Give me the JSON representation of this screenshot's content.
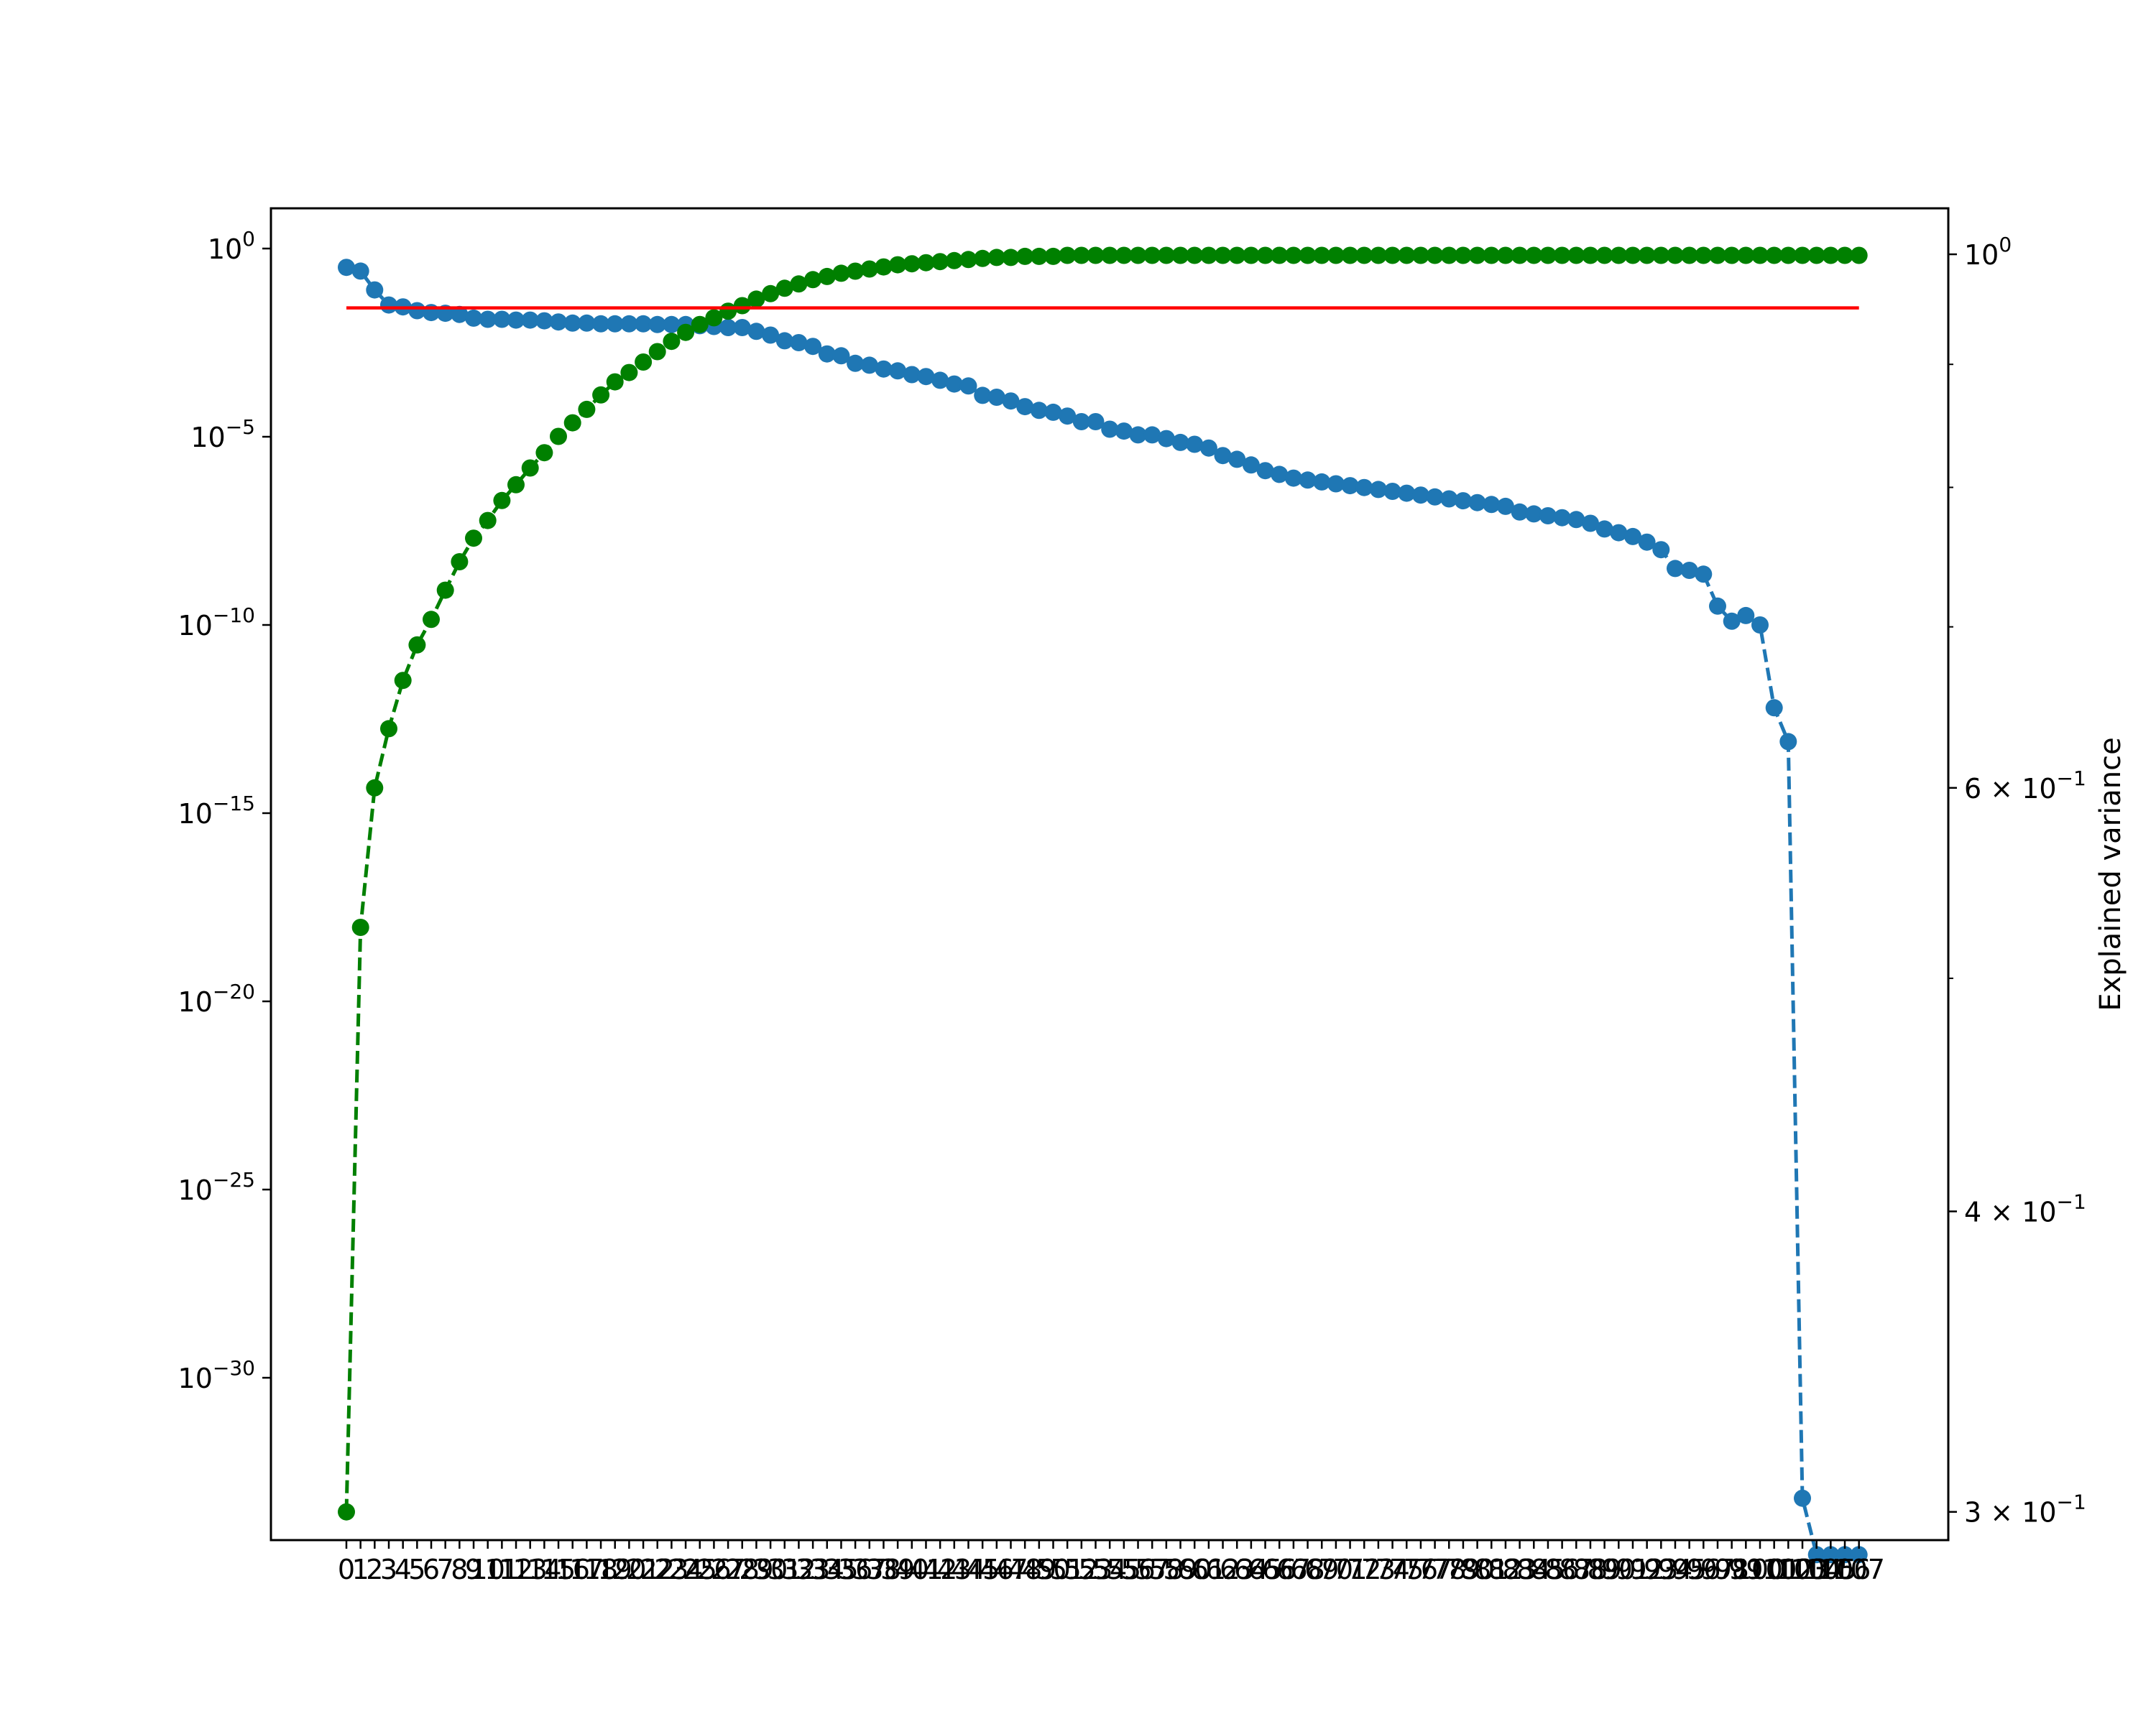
{
  "chart_data": {
    "type": "line",
    "title": "",
    "xlabel": "",
    "ylabel_left": "",
    "ylabel_right": "Explained variance",
    "x": [
      0,
      1,
      2,
      3,
      4,
      5,
      6,
      7,
      8,
      9,
      10,
      11,
      12,
      13,
      14,
      15,
      16,
      17,
      18,
      19,
      20,
      21,
      22,
      23,
      24,
      25,
      26,
      27,
      28,
      29,
      30,
      31,
      32,
      33,
      34,
      35,
      36,
      37,
      38,
      39,
      40,
      41,
      42,
      43,
      44,
      45,
      46,
      47,
      48,
      49,
      50,
      51,
      52,
      53,
      54,
      55,
      56,
      57,
      58,
      59,
      60,
      61,
      62,
      63,
      64,
      65,
      66,
      67,
      68,
      69,
      70,
      71,
      72,
      73,
      74,
      75,
      76,
      77,
      78,
      79,
      80,
      81,
      82,
      83,
      84,
      85,
      86,
      87,
      88,
      89,
      90,
      91,
      92,
      93,
      94,
      95,
      96,
      97,
      98,
      99,
      100,
      101,
      102,
      103,
      104,
      105,
      106,
      107
    ],
    "x_tick_labels": [
      "0",
      "1",
      "2",
      "3",
      "4",
      "5",
      "6",
      "7",
      "8",
      "9",
      "10",
      "11",
      "12",
      "13",
      "14",
      "15",
      "16",
      "17",
      "18",
      "19",
      "20",
      "21",
      "22",
      "23",
      "24",
      "25",
      "26",
      "27",
      "28",
      "29",
      "30",
      "31",
      "32",
      "33",
      "34",
      "35",
      "36",
      "37",
      "38",
      "39",
      "40",
      "41",
      "42",
      "43",
      "44",
      "45",
      "46",
      "47",
      "48",
      "49",
      "50",
      "51",
      "52",
      "53",
      "54",
      "55",
      "56",
      "57",
      "58",
      "59",
      "60",
      "61",
      "62",
      "63",
      "64",
      "65",
      "66",
      "67",
      "68",
      "69",
      "70",
      "71",
      "72",
      "73",
      "74",
      "75",
      "76",
      "77",
      "78",
      "79",
      "80",
      "81",
      "82",
      "83",
      "84",
      "85",
      "86",
      "87",
      "88",
      "89",
      "90",
      "91",
      "92",
      "93",
      "94",
      "95",
      "96",
      "97",
      "98",
      "99",
      "100",
      "101",
      "102",
      "103",
      "104",
      "105",
      "106",
      "107"
    ],
    "y_left": {
      "scale": "log",
      "ylim": [
        "1e-36",
        "1e1"
      ],
      "ticks": [
        {
          "base": "10",
          "exp": "0"
        },
        {
          "base": "10",
          "exp": "−5"
        },
        {
          "base": "10",
          "exp": "−10"
        },
        {
          "base": "10",
          "exp": "−15"
        },
        {
          "base": "10",
          "exp": "−20"
        },
        {
          "base": "10",
          "exp": "−25"
        },
        {
          "base": "10",
          "exp": "−30"
        }
      ]
    },
    "y_right": {
      "scale": "log",
      "ylim": [
        0.292,
        1.045
      ],
      "ticks": [
        {
          "mant": "",
          "base": "10",
          "exp": "0"
        },
        {
          "mant": "6 × ",
          "base": "10",
          "exp": "−1"
        },
        {
          "mant": "4 × ",
          "base": "10",
          "exp": "−1"
        },
        {
          "mant": "3 × ",
          "base": "10",
          "exp": "−1"
        }
      ]
    },
    "hline": {
      "axis": "right",
      "y": 0.95,
      "color": "#ff0000"
    },
    "series": [
      {
        "axis": "left",
        "color": "#1f77b4",
        "line_style": "dashed",
        "marker": "circle",
        "log10_values": [
          -0.5,
          -0.6,
          -1.1,
          -1.5,
          -1.55,
          -1.65,
          -1.7,
          -1.72,
          -1.75,
          -1.85,
          -1.88,
          -1.88,
          -1.9,
          -1.9,
          -1.92,
          -1.95,
          -1.98,
          -1.98,
          -2.0,
          -2.0,
          -2.0,
          -2.0,
          -2.02,
          -2.02,
          -2.02,
          -2.05,
          -2.07,
          -2.1,
          -2.1,
          -2.2,
          -2.3,
          -2.45,
          -2.5,
          -2.6,
          -2.8,
          -2.85,
          -3.05,
          -3.1,
          -3.2,
          -3.25,
          -3.35,
          -3.4,
          -3.5,
          -3.6,
          -3.65,
          -3.9,
          -3.95,
          -4.05,
          -4.2,
          -4.3,
          -4.35,
          -4.45,
          -4.6,
          -4.6,
          -4.8,
          -4.85,
          -4.95,
          -4.95,
          -5.05,
          -5.15,
          -5.2,
          -5.3,
          -5.5,
          -5.6,
          -5.75,
          -5.9,
          -6.0,
          -6.1,
          -6.15,
          -6.2,
          -6.25,
          -6.3,
          -6.35,
          -6.4,
          -6.45,
          -6.5,
          -6.55,
          -6.6,
          -6.65,
          -6.7,
          -6.75,
          -6.8,
          -6.85,
          -7.0,
          -7.05,
          -7.1,
          -7.15,
          -7.2,
          -7.3,
          -7.45,
          -7.55,
          -7.65,
          -7.8,
          -8.0,
          -8.5,
          -8.55,
          -8.65,
          -9.5,
          -9.9,
          -9.75,
          -10.0,
          -12.2,
          -13.1,
          -33.2,
          -34.7,
          -34.7,
          -34.7,
          -34.7
        ]
      },
      {
        "axis": "right",
        "color": "#008000",
        "line_style": "dashed",
        "marker": "circle",
        "values": [
          0.3,
          0.525,
          0.6,
          0.635,
          0.665,
          0.688,
          0.705,
          0.725,
          0.745,
          0.762,
          0.775,
          0.79,
          0.802,
          0.815,
          0.827,
          0.84,
          0.851,
          0.862,
          0.874,
          0.885,
          0.893,
          0.902,
          0.911,
          0.92,
          0.928,
          0.935,
          0.941,
          0.947,
          0.952,
          0.958,
          0.963,
          0.968,
          0.972,
          0.976,
          0.979,
          0.982,
          0.984,
          0.986,
          0.988,
          0.99,
          0.991,
          0.992,
          0.993,
          0.994,
          0.995,
          0.996,
          0.997,
          0.997,
          0.998,
          0.998,
          0.998,
          0.999,
          0.999,
          0.999,
          0.999,
          0.999,
          0.999,
          0.999,
          0.999,
          0.999,
          0.999,
          0.999,
          0.999,
          0.999,
          0.999,
          0.999,
          0.999,
          0.999,
          0.999,
          0.999,
          0.999,
          0.999,
          0.999,
          0.999,
          0.999,
          0.999,
          0.999,
          0.999,
          0.999,
          0.999,
          0.999,
          0.999,
          0.999,
          0.999,
          0.999,
          0.999,
          0.999,
          0.999,
          0.999,
          0.999,
          0.999,
          0.999,
          0.999,
          0.999,
          0.999,
          0.999,
          0.999,
          0.999,
          0.999,
          0.999,
          0.999,
          0.999,
          0.999,
          0.999,
          0.999,
          0.999,
          0.999,
          0.999
        ]
      }
    ],
    "grid": false,
    "legend": "none"
  }
}
